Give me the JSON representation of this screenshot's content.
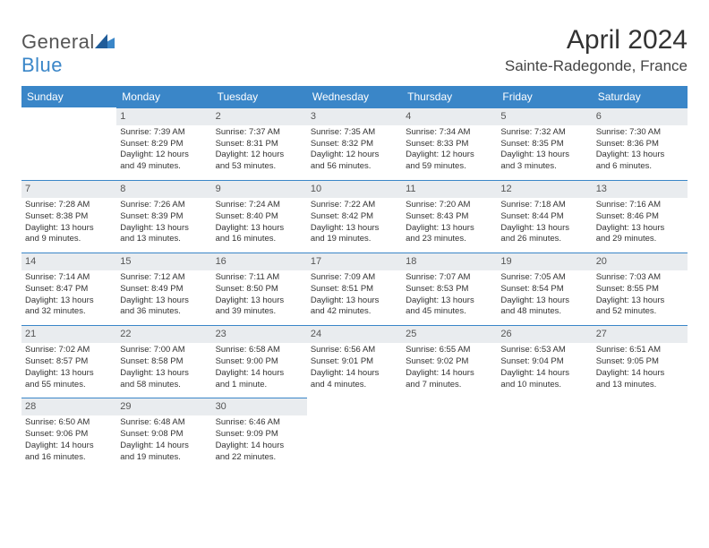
{
  "logo": {
    "word1": "General",
    "word2": "Blue"
  },
  "title": "April 2024",
  "location": "Sainte-Radegonde, France",
  "colors": {
    "header_bg": "#3a86c8",
    "header_text": "#ffffff",
    "daynum_bg": "#e9ecef",
    "row_border": "#3a86c8",
    "page_bg": "#ffffff",
    "text": "#333333"
  },
  "weekdays": [
    "Sunday",
    "Monday",
    "Tuesday",
    "Wednesday",
    "Thursday",
    "Friday",
    "Saturday"
  ],
  "weeks": [
    [
      {
        "blank": true
      },
      {
        "num": "1",
        "sunrise": "Sunrise: 7:39 AM",
        "sunset": "Sunset: 8:29 PM",
        "daylight1": "Daylight: 12 hours",
        "daylight2": "and 49 minutes."
      },
      {
        "num": "2",
        "sunrise": "Sunrise: 7:37 AM",
        "sunset": "Sunset: 8:31 PM",
        "daylight1": "Daylight: 12 hours",
        "daylight2": "and 53 minutes."
      },
      {
        "num": "3",
        "sunrise": "Sunrise: 7:35 AM",
        "sunset": "Sunset: 8:32 PM",
        "daylight1": "Daylight: 12 hours",
        "daylight2": "and 56 minutes."
      },
      {
        "num": "4",
        "sunrise": "Sunrise: 7:34 AM",
        "sunset": "Sunset: 8:33 PM",
        "daylight1": "Daylight: 12 hours",
        "daylight2": "and 59 minutes."
      },
      {
        "num": "5",
        "sunrise": "Sunrise: 7:32 AM",
        "sunset": "Sunset: 8:35 PM",
        "daylight1": "Daylight: 13 hours",
        "daylight2": "and 3 minutes."
      },
      {
        "num": "6",
        "sunrise": "Sunrise: 7:30 AM",
        "sunset": "Sunset: 8:36 PM",
        "daylight1": "Daylight: 13 hours",
        "daylight2": "and 6 minutes."
      }
    ],
    [
      {
        "num": "7",
        "sunrise": "Sunrise: 7:28 AM",
        "sunset": "Sunset: 8:38 PM",
        "daylight1": "Daylight: 13 hours",
        "daylight2": "and 9 minutes."
      },
      {
        "num": "8",
        "sunrise": "Sunrise: 7:26 AM",
        "sunset": "Sunset: 8:39 PM",
        "daylight1": "Daylight: 13 hours",
        "daylight2": "and 13 minutes."
      },
      {
        "num": "9",
        "sunrise": "Sunrise: 7:24 AM",
        "sunset": "Sunset: 8:40 PM",
        "daylight1": "Daylight: 13 hours",
        "daylight2": "and 16 minutes."
      },
      {
        "num": "10",
        "sunrise": "Sunrise: 7:22 AM",
        "sunset": "Sunset: 8:42 PM",
        "daylight1": "Daylight: 13 hours",
        "daylight2": "and 19 minutes."
      },
      {
        "num": "11",
        "sunrise": "Sunrise: 7:20 AM",
        "sunset": "Sunset: 8:43 PM",
        "daylight1": "Daylight: 13 hours",
        "daylight2": "and 23 minutes."
      },
      {
        "num": "12",
        "sunrise": "Sunrise: 7:18 AM",
        "sunset": "Sunset: 8:44 PM",
        "daylight1": "Daylight: 13 hours",
        "daylight2": "and 26 minutes."
      },
      {
        "num": "13",
        "sunrise": "Sunrise: 7:16 AM",
        "sunset": "Sunset: 8:46 PM",
        "daylight1": "Daylight: 13 hours",
        "daylight2": "and 29 minutes."
      }
    ],
    [
      {
        "num": "14",
        "sunrise": "Sunrise: 7:14 AM",
        "sunset": "Sunset: 8:47 PM",
        "daylight1": "Daylight: 13 hours",
        "daylight2": "and 32 minutes."
      },
      {
        "num": "15",
        "sunrise": "Sunrise: 7:12 AM",
        "sunset": "Sunset: 8:49 PM",
        "daylight1": "Daylight: 13 hours",
        "daylight2": "and 36 minutes."
      },
      {
        "num": "16",
        "sunrise": "Sunrise: 7:11 AM",
        "sunset": "Sunset: 8:50 PM",
        "daylight1": "Daylight: 13 hours",
        "daylight2": "and 39 minutes."
      },
      {
        "num": "17",
        "sunrise": "Sunrise: 7:09 AM",
        "sunset": "Sunset: 8:51 PM",
        "daylight1": "Daylight: 13 hours",
        "daylight2": "and 42 minutes."
      },
      {
        "num": "18",
        "sunrise": "Sunrise: 7:07 AM",
        "sunset": "Sunset: 8:53 PM",
        "daylight1": "Daylight: 13 hours",
        "daylight2": "and 45 minutes."
      },
      {
        "num": "19",
        "sunrise": "Sunrise: 7:05 AM",
        "sunset": "Sunset: 8:54 PM",
        "daylight1": "Daylight: 13 hours",
        "daylight2": "and 48 minutes."
      },
      {
        "num": "20",
        "sunrise": "Sunrise: 7:03 AM",
        "sunset": "Sunset: 8:55 PM",
        "daylight1": "Daylight: 13 hours",
        "daylight2": "and 52 minutes."
      }
    ],
    [
      {
        "num": "21",
        "sunrise": "Sunrise: 7:02 AM",
        "sunset": "Sunset: 8:57 PM",
        "daylight1": "Daylight: 13 hours",
        "daylight2": "and 55 minutes."
      },
      {
        "num": "22",
        "sunrise": "Sunrise: 7:00 AM",
        "sunset": "Sunset: 8:58 PM",
        "daylight1": "Daylight: 13 hours",
        "daylight2": "and 58 minutes."
      },
      {
        "num": "23",
        "sunrise": "Sunrise: 6:58 AM",
        "sunset": "Sunset: 9:00 PM",
        "daylight1": "Daylight: 14 hours",
        "daylight2": "and 1 minute."
      },
      {
        "num": "24",
        "sunrise": "Sunrise: 6:56 AM",
        "sunset": "Sunset: 9:01 PM",
        "daylight1": "Daylight: 14 hours",
        "daylight2": "and 4 minutes."
      },
      {
        "num": "25",
        "sunrise": "Sunrise: 6:55 AM",
        "sunset": "Sunset: 9:02 PM",
        "daylight1": "Daylight: 14 hours",
        "daylight2": "and 7 minutes."
      },
      {
        "num": "26",
        "sunrise": "Sunrise: 6:53 AM",
        "sunset": "Sunset: 9:04 PM",
        "daylight1": "Daylight: 14 hours",
        "daylight2": "and 10 minutes."
      },
      {
        "num": "27",
        "sunrise": "Sunrise: 6:51 AM",
        "sunset": "Sunset: 9:05 PM",
        "daylight1": "Daylight: 14 hours",
        "daylight2": "and 13 minutes."
      }
    ],
    [
      {
        "num": "28",
        "sunrise": "Sunrise: 6:50 AM",
        "sunset": "Sunset: 9:06 PM",
        "daylight1": "Daylight: 14 hours",
        "daylight2": "and 16 minutes."
      },
      {
        "num": "29",
        "sunrise": "Sunrise: 6:48 AM",
        "sunset": "Sunset: 9:08 PM",
        "daylight1": "Daylight: 14 hours",
        "daylight2": "and 19 minutes."
      },
      {
        "num": "30",
        "sunrise": "Sunrise: 6:46 AM",
        "sunset": "Sunset: 9:09 PM",
        "daylight1": "Daylight: 14 hours",
        "daylight2": "and 22 minutes."
      },
      {
        "blank": true
      },
      {
        "blank": true
      },
      {
        "blank": true
      },
      {
        "blank": true
      }
    ]
  ]
}
